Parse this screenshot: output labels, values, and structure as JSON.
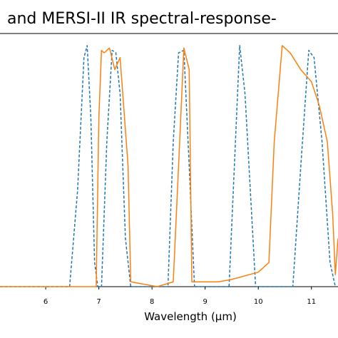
{
  "chart_data": {
    "type": "line",
    "title": "and MERSI-II IR spectral-response-",
    "x_label": "Wavelength (μm)",
    "xlim": [
      5.14,
      11.5
    ],
    "xticks": [
      6,
      7,
      8,
      9,
      10,
      11
    ],
    "ylim": [
      0,
      1.05
    ],
    "series": [
      {
        "color": "#1f77b4",
        "dashed": true,
        "x": [
          5.14,
          6.45,
          6.6,
          6.72,
          6.78,
          6.85,
          6.92,
          6.98,
          7.05,
          7.15,
          7.25,
          7.32,
          7.4,
          7.5,
          7.6,
          8.3,
          8.4,
          8.5,
          8.6,
          8.7,
          8.8,
          9.45,
          9.55,
          9.65,
          9.75,
          9.85,
          9.95,
          10.65,
          10.8,
          10.95,
          11.05,
          11.2,
          11.35,
          11.45
        ],
        "values": [
          0,
          0,
          0.4,
          0.95,
          1.0,
          0.7,
          0.1,
          0,
          0,
          0.6,
          0.98,
          0.97,
          0.8,
          0.2,
          0,
          0,
          0.6,
          0.97,
          0.98,
          0.5,
          0,
          0,
          0.5,
          1.0,
          0.8,
          0.4,
          0,
          0,
          0.5,
          0.98,
          0.95,
          0.6,
          0.1,
          0
        ]
      },
      {
        "color": "#ff7f0e",
        "dashed": false,
        "x": [
          5.14,
          6.95,
          7.0,
          7.05,
          7.1,
          7.2,
          7.3,
          7.4,
          7.55,
          7.6,
          8.1,
          8.4,
          8.5,
          8.6,
          8.7,
          8.75,
          9.25,
          9.5,
          10.0,
          10.2,
          10.3,
          10.45,
          10.6,
          10.8,
          11.0,
          11.15,
          11.3,
          11.4,
          11.45,
          11.5
        ],
        "values": [
          0,
          0,
          0.7,
          0.98,
          0.97,
          0.99,
          0.9,
          0.95,
          0.5,
          0.02,
          0,
          0.02,
          0.5,
          0.99,
          0.9,
          0.02,
          0.02,
          0.03,
          0.06,
          0.1,
          0.6,
          1.0,
          0.97,
          0.9,
          0.85,
          0.75,
          0.6,
          0.3,
          0.05,
          0.2
        ]
      }
    ]
  }
}
